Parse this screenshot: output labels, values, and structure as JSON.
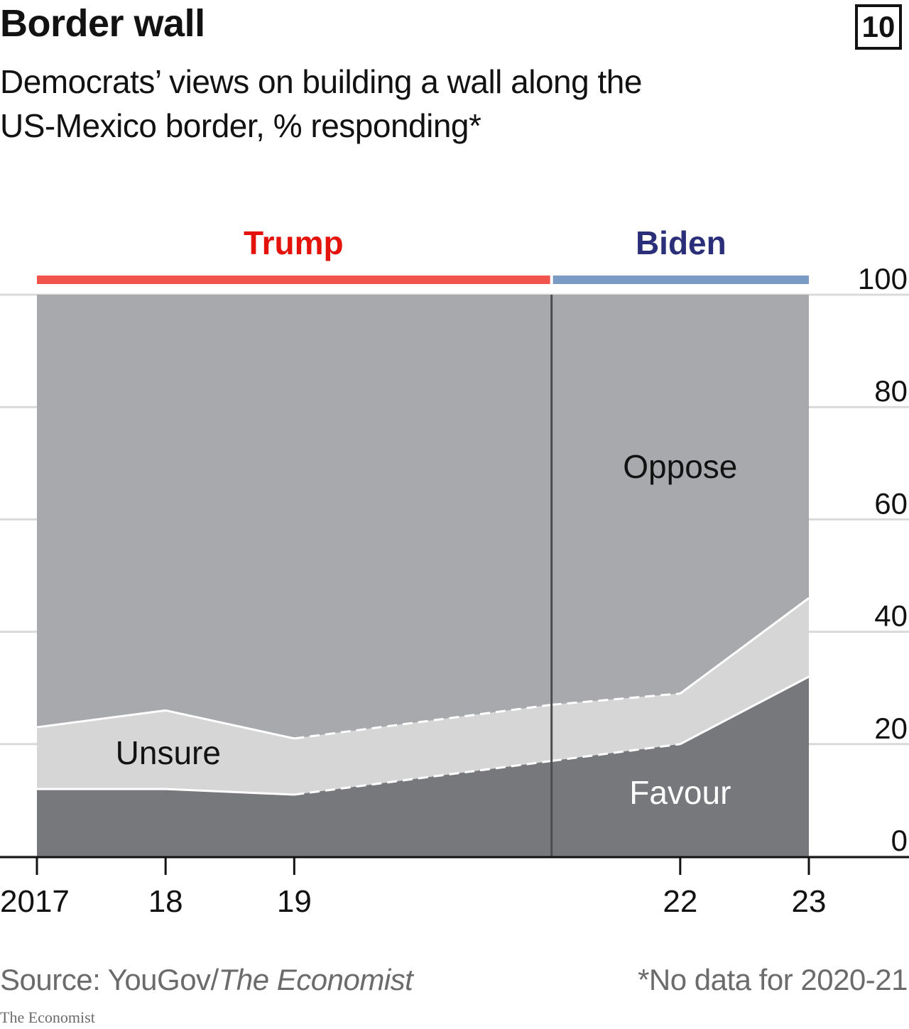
{
  "header": {
    "title": "Border wall",
    "chart_number": "10",
    "subtitle": "Democrats’ views on building a wall along the US-Mexico border, % responding*"
  },
  "footer": {
    "source_prefix": "Source: YouGov/",
    "source_italic": "The Economist",
    "note": "*No data for 2020-21",
    "brand": "The Economist"
  },
  "colors": {
    "trump": "#e3120b",
    "trump_bar": "#f0544d",
    "biden": "#2b2f7a",
    "biden_bar": "#7a9cc4",
    "oppose": "#a8a9ac",
    "unsure": "#d6d6d6",
    "favour": "#77787b"
  },
  "chart_data": {
    "type": "area",
    "stacked": true,
    "x": [
      2017,
      2018,
      2019,
      2021,
      2022,
      2023
    ],
    "x_tick_labels": [
      "2017",
      "18",
      "19",
      "22",
      "23"
    ],
    "x_tick_values": [
      2017,
      2018,
      2019,
      2022,
      2023
    ],
    "interpolated_x": [
      2021
    ],
    "ylim": [
      0,
      100
    ],
    "y_ticks": [
      0,
      20,
      40,
      60,
      80,
      100
    ],
    "y_axis_side": "right",
    "grid": true,
    "series": [
      {
        "name": "Favour",
        "values": [
          12,
          12,
          11,
          17,
          20,
          32
        ]
      },
      {
        "name": "Unsure",
        "values": [
          11,
          14,
          10,
          10,
          9,
          14
        ]
      },
      {
        "name": "Oppose",
        "values": [
          77,
          74,
          79,
          73,
          71,
          54
        ]
      }
    ],
    "annotations": {
      "periods": [
        {
          "label": "Trump",
          "from": 2017,
          "to": 2021
        },
        {
          "label": "Biden",
          "from": 2021,
          "to": 2023
        }
      ],
      "divider_x": 2021
    }
  }
}
